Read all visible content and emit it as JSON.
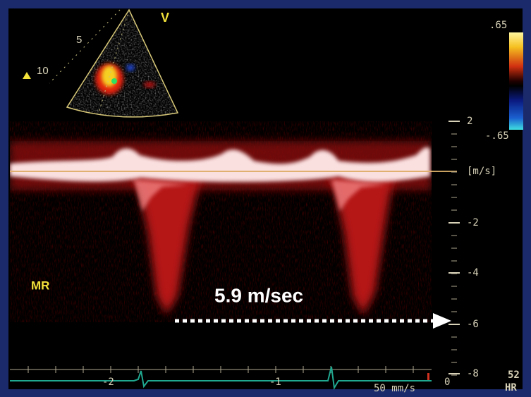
{
  "sector": {
    "view_label": "V",
    "depth_labels": [
      "5",
      "10"
    ]
  },
  "color_scale": {
    "top": ".65",
    "bottom": "-.65"
  },
  "velocity_scale": {
    "ticks": [
      "2",
      "-2",
      "-4",
      "-6",
      "-8"
    ],
    "unit": "[m/s]"
  },
  "annotation": {
    "label": "MR",
    "measurement": "5.9 m/sec"
  },
  "time_scale": {
    "ticks": [
      "-2",
      "-1",
      "0"
    ],
    "sweep": "50 mm/s"
  },
  "heart_rate": {
    "value": "52",
    "label": "HR"
  }
}
